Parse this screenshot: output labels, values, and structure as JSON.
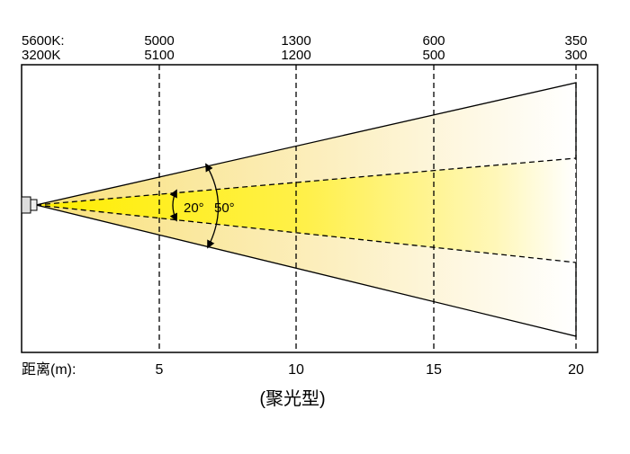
{
  "header": {
    "row_labels": [
      "5600K:",
      "3200K"
    ]
  },
  "columns": [
    {
      "lux_5600k": "5000",
      "lux_3200k": "5100",
      "distance": "5"
    },
    {
      "lux_5600k": "1300",
      "lux_3200k": "1200",
      "distance": "10"
    },
    {
      "lux_5600k": "600",
      "lux_3200k": "500",
      "distance": "15"
    },
    {
      "lux_5600k": "350",
      "lux_3200k": "300",
      "distance": "20"
    }
  ],
  "distance_label": "距离(m):",
  "angles": {
    "inner": "20°",
    "outer": "50°"
  },
  "caption": "(聚光型)"
}
